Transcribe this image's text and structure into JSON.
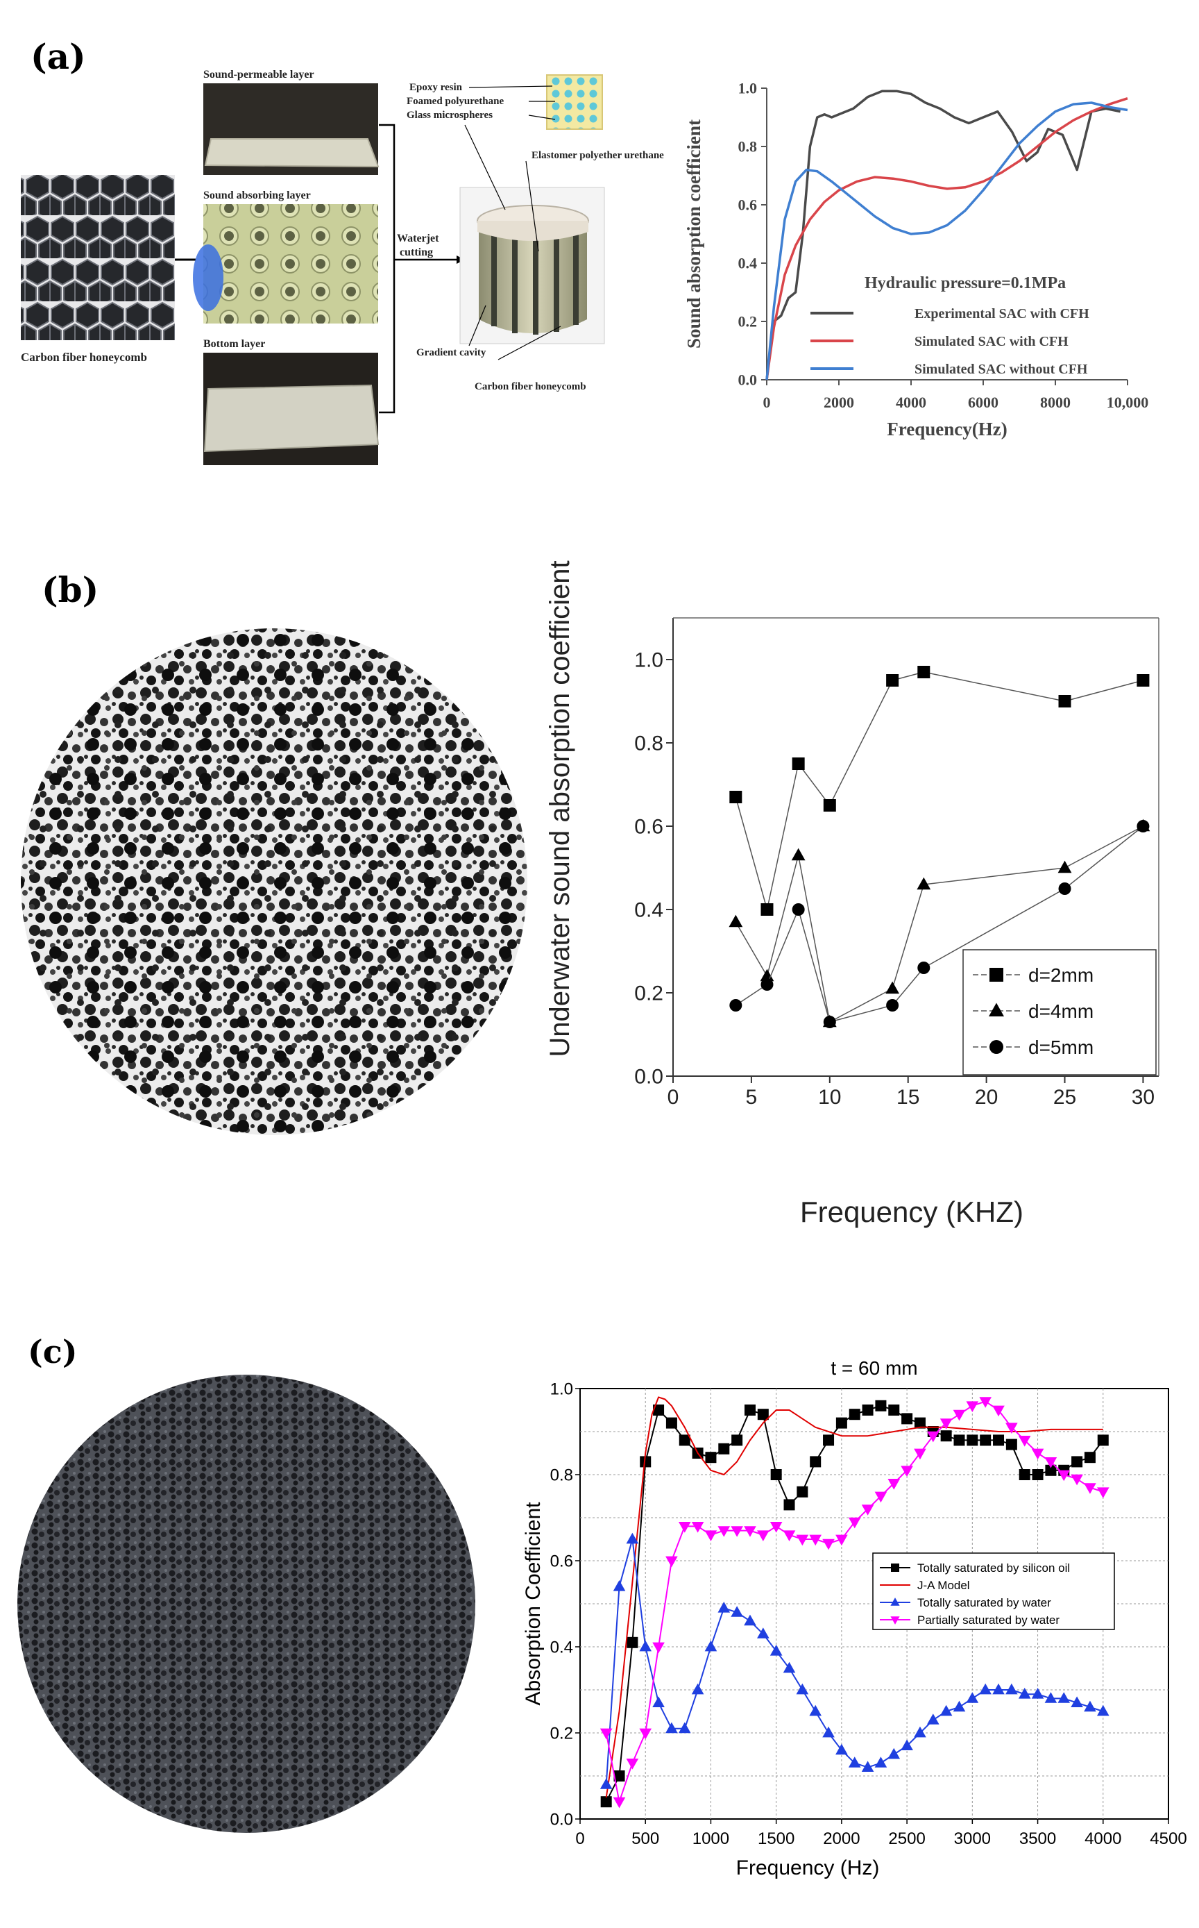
{
  "panels": {
    "a": "(a)",
    "b": "(b)",
    "c": "(c)"
  },
  "diagram": {
    "labels": {
      "sound_permeable": "Sound-permeable layer",
      "sound_absorbing": "Sound absorbing layer",
      "bottom": "Bottom layer",
      "honeycomb_left": "Carbon fiber honeycomb",
      "waterjet1": "Waterjet",
      "waterjet2": "cutting",
      "epoxy": "Epoxy resin",
      "foamed": "Foamed polyurethane",
      "glass": "Glass microspheres",
      "elastomer": "Elastomer polyether urethane",
      "gradient": "Gradient cavity",
      "honeycomb_right": "Carbon fiber honeycomb"
    }
  },
  "chart_data": [
    {
      "type": "line",
      "title": "",
      "annotation": "Hydraulic pressure=0.1MPa",
      "xlabel": "Frequency(Hz)",
      "ylabel": "Sound absorption coefficient",
      "xlim": [
        0,
        10000
      ],
      "ylim": [
        0,
        1.0
      ],
      "xticks": [
        "0",
        "2000",
        "4000",
        "6000",
        "8000",
        "10,000"
      ],
      "xtick_values": [
        0,
        2000,
        4000,
        6000,
        8000,
        10000
      ],
      "yticks": [
        "0.0",
        "0.2",
        "0.4",
        "0.6",
        "0.8",
        "1.0"
      ],
      "ytick_values": [
        0,
        0.2,
        0.4,
        0.6,
        0.8,
        1.0
      ],
      "grid": false,
      "legend_position": "bottom-right",
      "series": [
        {
          "name": "Experimental SAC with CFH",
          "color": "#4a4a4a",
          "x": [
            0,
            200,
            400,
            600,
            800,
            1000,
            1200,
            1400,
            1600,
            1800,
            2000,
            2400,
            2800,
            3200,
            3600,
            4000,
            4400,
            4800,
            5200,
            5600,
            6000,
            6400,
            6800,
            7200,
            7500,
            7800,
            8200,
            8600,
            9000,
            9400,
            9800
          ],
          "y": [
            0.0,
            0.2,
            0.22,
            0.28,
            0.3,
            0.5,
            0.8,
            0.9,
            0.91,
            0.9,
            0.91,
            0.93,
            0.97,
            0.99,
            0.99,
            0.98,
            0.95,
            0.93,
            0.9,
            0.88,
            0.9,
            0.92,
            0.85,
            0.75,
            0.78,
            0.86,
            0.84,
            0.72,
            0.92,
            0.93,
            0.92
          ]
        },
        {
          "name": "Simulated SAC with CFH",
          "color": "#d9454a",
          "x": [
            0,
            200,
            500,
            800,
            1200,
            1600,
            2000,
            2500,
            3000,
            3500,
            4000,
            4500,
            5000,
            5500,
            6000,
            6500,
            7000,
            7500,
            8000,
            8500,
            9000,
            9500,
            10000
          ],
          "y": [
            0.0,
            0.18,
            0.36,
            0.46,
            0.55,
            0.61,
            0.65,
            0.68,
            0.695,
            0.69,
            0.68,
            0.665,
            0.655,
            0.66,
            0.68,
            0.71,
            0.75,
            0.8,
            0.85,
            0.89,
            0.92,
            0.945,
            0.965
          ]
        },
        {
          "name": "Simulated SAC without CFH",
          "color": "#3f7fd1",
          "x": [
            0,
            200,
            500,
            800,
            1100,
            1400,
            1800,
            2200,
            2600,
            3000,
            3500,
            4000,
            4500,
            5000,
            5500,
            6000,
            6500,
            7000,
            7500,
            8000,
            8500,
            9000,
            9500,
            10000
          ],
          "y": [
            0.0,
            0.25,
            0.55,
            0.68,
            0.72,
            0.715,
            0.68,
            0.64,
            0.6,
            0.56,
            0.52,
            0.5,
            0.505,
            0.53,
            0.58,
            0.65,
            0.73,
            0.81,
            0.87,
            0.92,
            0.945,
            0.95,
            0.935,
            0.925
          ]
        }
      ]
    },
    {
      "type": "line",
      "title": "",
      "xlabel": "Frequency (KHZ)",
      "ylabel": "Underwater sound absorption coefficient",
      "xlim": [
        0,
        31
      ],
      "ylim": [
        0,
        1.1
      ],
      "xticks": [
        "0",
        "5",
        "10",
        "15",
        "20",
        "25",
        "30"
      ],
      "xtick_values": [
        0,
        5,
        10,
        15,
        20,
        25,
        30
      ],
      "yticks": [
        "0.0",
        "0.2",
        "0.4",
        "0.6",
        "0.8",
        "1.0"
      ],
      "ytick_values": [
        0,
        0.2,
        0.4,
        0.6,
        0.8,
        1.0
      ],
      "grid": false,
      "legend_position": "bottom-right",
      "series": [
        {
          "name": "d=2mm",
          "marker": "square",
          "x": [
            4,
            6,
            8,
            10,
            14,
            16,
            25,
            30
          ],
          "y": [
            0.67,
            0.4,
            0.75,
            0.65,
            0.95,
            0.97,
            0.9,
            0.95
          ]
        },
        {
          "name": "d=4mm",
          "marker": "triangle",
          "x": [
            4,
            6,
            8,
            10,
            14,
            16,
            25,
            30
          ],
          "y": [
            0.37,
            0.24,
            0.53,
            0.13,
            0.21,
            0.46,
            0.5,
            0.6
          ]
        },
        {
          "name": "d=5mm",
          "marker": "circle",
          "x": [
            4,
            6,
            8,
            10,
            14,
            16,
            25,
            30
          ],
          "y": [
            0.17,
            0.22,
            0.4,
            0.13,
            0.17,
            0.26,
            0.45,
            0.6
          ]
        }
      ]
    },
    {
      "type": "line",
      "title": "t = 60 mm",
      "xlabel": "Frequency (Hz)",
      "ylabel": "Absorption Coefficient",
      "xlim": [
        0,
        4500
      ],
      "ylim": [
        0,
        1.0
      ],
      "xticks": [
        "0",
        "500",
        "1000",
        "1500",
        "2000",
        "2500",
        "3000",
        "3500",
        "4000",
        "4500"
      ],
      "xtick_values": [
        0,
        500,
        1000,
        1500,
        2000,
        2500,
        3000,
        3500,
        4000,
        4500
      ],
      "yticks": [
        "0.0",
        "0.2",
        "0.4",
        "0.6",
        "0.8",
        "1.0"
      ],
      "ytick_values": [
        0,
        0.2,
        0.4,
        0.6,
        0.8,
        1.0
      ],
      "grid": true,
      "legend_position": "center-right",
      "series": [
        {
          "name": "Totally saturated by silicon oil",
          "color": "#000000",
          "marker": "square",
          "x": [
            200,
            300,
            400,
            500,
            600,
            700,
            800,
            900,
            1000,
            1100,
            1200,
            1300,
            1400,
            1500,
            1600,
            1700,
            1800,
            1900,
            2000,
            2100,
            2200,
            2300,
            2400,
            2500,
            2600,
            2700,
            2800,
            2900,
            3000,
            3100,
            3200,
            3300,
            3400,
            3500,
            3600,
            3700,
            3800,
            3900,
            4000
          ],
          "y": [
            0.04,
            0.1,
            0.41,
            0.83,
            0.95,
            0.92,
            0.88,
            0.85,
            0.84,
            0.86,
            0.88,
            0.95,
            0.94,
            0.8,
            0.73,
            0.76,
            0.83,
            0.88,
            0.92,
            0.94,
            0.95,
            0.96,
            0.95,
            0.93,
            0.92,
            0.9,
            0.89,
            0.88,
            0.88,
            0.88,
            0.88,
            0.87,
            0.8,
            0.8,
            0.81,
            0.81,
            0.83,
            0.84,
            0.88
          ]
        },
        {
          "name": "J-A Model",
          "color": "#e00000",
          "marker": "none",
          "x": [
            200,
            300,
            400,
            500,
            550,
            600,
            650,
            700,
            800,
            900,
            1000,
            1100,
            1200,
            1300,
            1400,
            1500,
            1600,
            1700,
            1800,
            2000,
            2200,
            2400,
            2600,
            2800,
            3000,
            3200,
            3400,
            3600,
            3800,
            4000
          ],
          "y": [
            0.05,
            0.25,
            0.55,
            0.85,
            0.94,
            0.98,
            0.975,
            0.96,
            0.91,
            0.85,
            0.81,
            0.8,
            0.83,
            0.88,
            0.92,
            0.95,
            0.95,
            0.93,
            0.91,
            0.89,
            0.89,
            0.9,
            0.91,
            0.91,
            0.905,
            0.9,
            0.9,
            0.905,
            0.905,
            0.905
          ]
        },
        {
          "name": "Totally saturated by water",
          "color": "#1f3fe0",
          "marker": "triangle",
          "x": [
            200,
            300,
            400,
            500,
            600,
            700,
            800,
            900,
            1000,
            1100,
            1200,
            1300,
            1400,
            1500,
            1600,
            1700,
            1800,
            1900,
            2000,
            2100,
            2200,
            2300,
            2400,
            2500,
            2600,
            2700,
            2800,
            2900,
            3000,
            3100,
            3200,
            3300,
            3400,
            3500,
            3600,
            3700,
            3800,
            3900,
            4000
          ],
          "y": [
            0.08,
            0.54,
            0.65,
            0.4,
            0.27,
            0.21,
            0.21,
            0.3,
            0.4,
            0.49,
            0.48,
            0.46,
            0.43,
            0.39,
            0.35,
            0.3,
            0.25,
            0.2,
            0.16,
            0.13,
            0.12,
            0.13,
            0.15,
            0.17,
            0.2,
            0.23,
            0.25,
            0.26,
            0.28,
            0.3,
            0.3,
            0.3,
            0.29,
            0.29,
            0.28,
            0.28,
            0.27,
            0.26,
            0.25
          ]
        },
        {
          "name": "Partially saturated by water",
          "color": "#ff00ff",
          "marker": "triangle-down",
          "x": [
            200,
            300,
            400,
            500,
            600,
            700,
            800,
            900,
            1000,
            1100,
            1200,
            1300,
            1400,
            1500,
            1600,
            1700,
            1800,
            1900,
            2000,
            2100,
            2200,
            2300,
            2400,
            2500,
            2600,
            2700,
            2800,
            2900,
            3000,
            3100,
            3200,
            3300,
            3400,
            3500,
            3600,
            3700,
            3800,
            3900,
            4000
          ],
          "y": [
            0.2,
            0.04,
            0.13,
            0.2,
            0.4,
            0.6,
            0.68,
            0.68,
            0.66,
            0.67,
            0.67,
            0.67,
            0.66,
            0.68,
            0.66,
            0.65,
            0.65,
            0.64,
            0.65,
            0.69,
            0.72,
            0.75,
            0.78,
            0.81,
            0.85,
            0.89,
            0.92,
            0.94,
            0.96,
            0.97,
            0.95,
            0.91,
            0.88,
            0.85,
            0.83,
            0.8,
            0.79,
            0.77,
            0.76
          ]
        }
      ]
    }
  ]
}
